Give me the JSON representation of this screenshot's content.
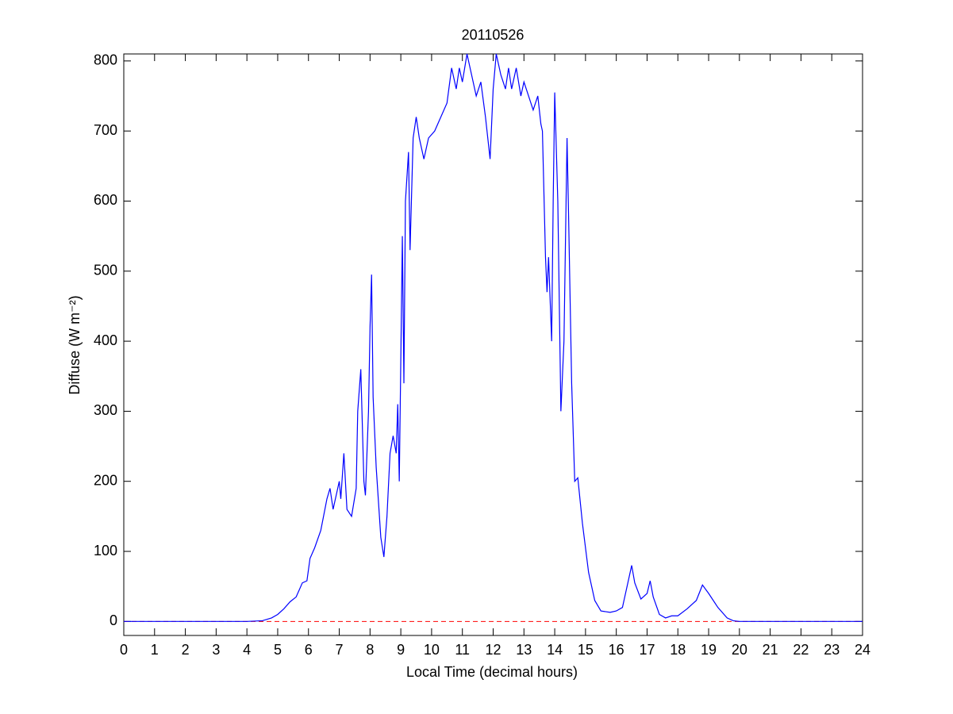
{
  "chart_data": {
    "type": "line",
    "title": "20110526",
    "xlabel": "Local Time (decimal hours)",
    "ylabel": "Diffuse (W m⁻²)",
    "x": [
      0,
      1,
      2,
      3,
      4,
      4.5,
      4.8,
      5,
      5.2,
      5.4,
      5.6,
      5.8,
      5.95,
      6.05,
      6.2,
      6.4,
      6.6,
      6.7,
      6.8,
      6.9,
      7.0,
      7.05,
      7.15,
      7.25,
      7.4,
      7.55,
      7.6,
      7.7,
      7.8,
      7.85,
      7.95,
      8.0,
      8.05,
      8.1,
      8.2,
      8.35,
      8.45,
      8.55,
      8.65,
      8.75,
      8.85,
      8.9,
      8.95,
      9.05,
      9.1,
      9.15,
      9.25,
      9.3,
      9.4,
      9.5,
      9.6,
      9.75,
      9.9,
      10.1,
      10.3,
      10.5,
      10.65,
      10.8,
      10.9,
      11.0,
      11.15,
      11.3,
      11.45,
      11.6,
      11.75,
      11.85,
      11.9,
      12.0,
      12.1,
      12.25,
      12.4,
      12.5,
      12.6,
      12.75,
      12.9,
      13.0,
      13.15,
      13.3,
      13.45,
      13.55,
      13.6,
      13.7,
      13.75,
      13.8,
      13.9,
      13.95,
      14.0,
      14.1,
      14.2,
      14.3,
      14.4,
      14.45,
      14.55,
      14.65,
      14.75,
      14.9,
      15.1,
      15.3,
      15.5,
      15.8,
      16.0,
      16.2,
      16.4,
      16.5,
      16.6,
      16.8,
      17.0,
      17.1,
      17.2,
      17.4,
      17.6,
      17.8,
      18.0,
      18.3,
      18.6,
      18.8,
      19.0,
      19.3,
      19.6,
      19.8,
      20,
      21,
      22,
      23,
      24
    ],
    "series": [
      {
        "color": "#0000ff",
        "values": [
          0,
          0,
          0,
          0,
          0,
          1,
          5,
          10,
          18,
          28,
          35,
          55,
          58,
          90,
          105,
          130,
          175,
          190,
          160,
          180,
          200,
          175,
          240,
          160,
          150,
          190,
          300,
          360,
          200,
          180,
          300,
          420,
          495,
          320,
          220,
          120,
          92,
          150,
          240,
          265,
          240,
          310,
          200,
          550,
          340,
          600,
          670,
          530,
          690,
          720,
          690,
          660,
          690,
          700,
          720,
          740,
          790,
          760,
          790,
          770,
          810,
          780,
          750,
          770,
          720,
          680,
          660,
          760,
          810,
          780,
          760,
          790,
          760,
          790,
          750,
          770,
          750,
          730,
          750,
          710,
          700,
          520,
          470,
          520,
          400,
          600,
          755,
          600,
          300,
          400,
          690,
          580,
          340,
          200,
          205,
          140,
          70,
          30,
          15,
          13,
          15,
          20,
          60,
          80,
          55,
          32,
          40,
          58,
          35,
          10,
          5,
          8,
          8,
          18,
          30,
          52,
          40,
          20,
          5,
          1,
          0,
          0,
          0,
          0,
          0
        ]
      }
    ],
    "hline": {
      "value": 0,
      "color": "#ff0000",
      "style": "dashed"
    },
    "xlim": [
      0,
      24
    ],
    "xticks": [
      0,
      1,
      2,
      3,
      4,
      5,
      6,
      7,
      8,
      9,
      10,
      11,
      12,
      13,
      14,
      15,
      16,
      17,
      18,
      19,
      20,
      21,
      22,
      23,
      24
    ],
    "ylim": [
      -20,
      810
    ],
    "yticks": [
      0,
      100,
      200,
      300,
      400,
      500,
      600,
      700,
      800
    ]
  }
}
